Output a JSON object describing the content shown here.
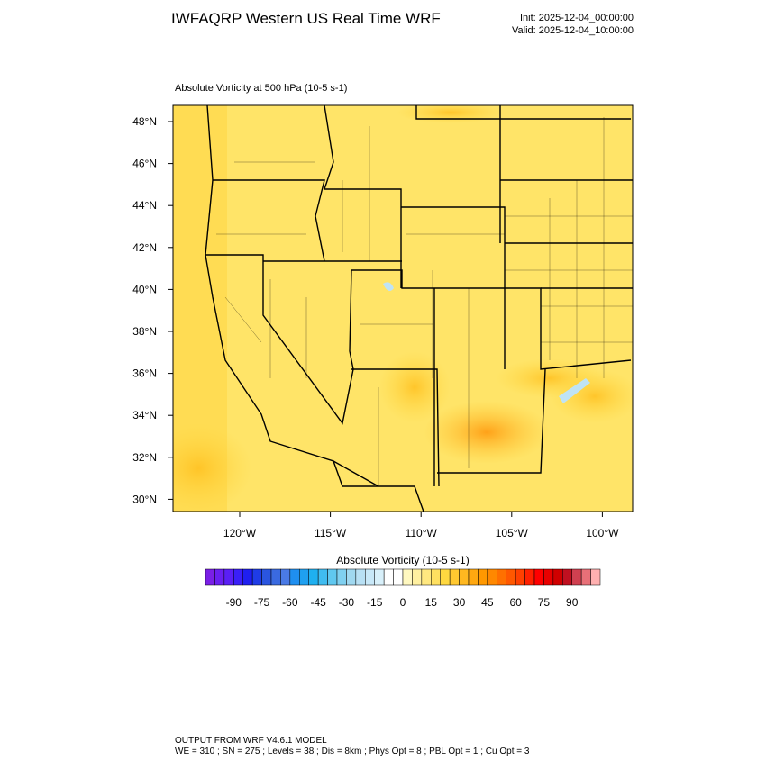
{
  "header": {
    "title": "IWFAQRP Western US Real Time WRF",
    "init": "Init: 2025-12-04_00:00:00",
    "valid": "Valid: 2025-12-04_10:00:00"
  },
  "map": {
    "title": "Absolute Vorticity at 500 hPa   (10-5 s-1)",
    "lat_labels": [
      "48°N",
      "46°N",
      "44°N",
      "42°N",
      "40°N",
      "38°N",
      "36°N",
      "34°N",
      "32°N",
      "30°N"
    ],
    "lon_labels": [
      "120°W",
      "115°W",
      "110°W",
      "105°W",
      "100°W"
    ]
  },
  "colorbar": {
    "title": "Absolute Vorticity  (10-5 s-1)",
    "ticks": [
      -90,
      -75,
      -60,
      -45,
      -30,
      -15,
      0,
      15,
      30,
      45,
      60,
      75,
      90
    ],
    "lim": [
      -105,
      105
    ],
    "colors": [
      "#7a1fe6",
      "#6a1ff0",
      "#5a1ff5",
      "#3a1ff8",
      "#1f1ff0",
      "#1f3ce6",
      "#2a55e0",
      "#3a6ae0",
      "#4a7ae6",
      "#1f8ff0",
      "#1fa0f0",
      "#1fb0f0",
      "#40bcf0",
      "#60c8f0",
      "#80d0f0",
      "#a0d8f0",
      "#b8e0f4",
      "#c8e8f8",
      "#d8f0fa",
      "#ffffff",
      "#ffffff",
      "#fff8c0",
      "#fff0a0",
      "#ffe880",
      "#ffe060",
      "#ffd840",
      "#ffc830",
      "#ffb820",
      "#ffa810",
      "#ff9800",
      "#ff8800",
      "#ff7000",
      "#ff5800",
      "#ff4000",
      "#ff2000",
      "#ff0000",
      "#e80000",
      "#d00000",
      "#c01020",
      "#d04050",
      "#e87078",
      "#ffb0b0"
    ]
  },
  "footer": {
    "line1": "OUTPUT FROM WRF V4.6.1 MODEL",
    "line2": "WE = 310 ; SN = 275 ; Levels = 38 ; Dis = 8km ; Phys Opt = 8 ; PBL Opt = 1 ; Cu Opt = 3"
  }
}
